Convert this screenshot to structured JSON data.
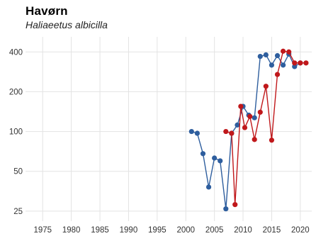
{
  "chart_data": {
    "type": "line",
    "title": "Havørn",
    "subtitle": "Haliaeetus albicilla",
    "xlabel": "",
    "ylabel": "",
    "y_scale": "log",
    "x_ticks": [
      1975,
      1980,
      1985,
      1990,
      1995,
      2000,
      2005,
      2010,
      2015,
      2020
    ],
    "y_ticks": [
      25,
      50,
      100,
      200,
      400
    ],
    "xlim": [
      1972,
      2022
    ],
    "ylim": [
      21,
      520
    ],
    "grid": true,
    "legend": "none",
    "series": [
      {
        "color": "#2e5e9e",
        "points": [
          {
            "x": 2001,
            "y": 100
          },
          {
            "x": 2002,
            "y": 97
          },
          {
            "x": 2003,
            "y": 68
          },
          {
            "x": 2004,
            "y": 38
          },
          {
            "x": 2005,
            "y": 63
          },
          {
            "x": 2006,
            "y": 60
          },
          {
            "x": 2007,
            "y": 26
          },
          {
            "x": 2008,
            "y": 97
          },
          {
            "x": 2009,
            "y": 112
          },
          {
            "x": 2010,
            "y": 155
          },
          {
            "x": 2011,
            "y": 133
          },
          {
            "x": 2012,
            "y": 127
          },
          {
            "x": 2013,
            "y": 370
          },
          {
            "x": 2014,
            "y": 380
          },
          {
            "x": 2015,
            "y": 318
          },
          {
            "x": 2016,
            "y": 375
          },
          {
            "x": 2017,
            "y": 318
          },
          {
            "x": 2018,
            "y": 385
          },
          {
            "x": 2019,
            "y": 310
          },
          {
            "x": 2020,
            "y": 330
          }
        ]
      },
      {
        "color": "#c0181b",
        "points": [
          {
            "x": 2007,
            "y": 100
          },
          {
            "x": 2008,
            "y": 97
          },
          {
            "x": 2008.6,
            "y": 28
          },
          {
            "x": 2009.6,
            "y": 155
          },
          {
            "x": 2010.3,
            "y": 107
          },
          {
            "x": 2011.2,
            "y": 130
          },
          {
            "x": 2012,
            "y": 87
          },
          {
            "x": 2013,
            "y": 140
          },
          {
            "x": 2014,
            "y": 220
          },
          {
            "x": 2015,
            "y": 86
          },
          {
            "x": 2016,
            "y": 270
          },
          {
            "x": 2017,
            "y": 405
          },
          {
            "x": 2018,
            "y": 400
          },
          {
            "x": 2019,
            "y": 330
          },
          {
            "x": 2020,
            "y": 330
          },
          {
            "x": 2021,
            "y": 330
          }
        ]
      }
    ]
  }
}
